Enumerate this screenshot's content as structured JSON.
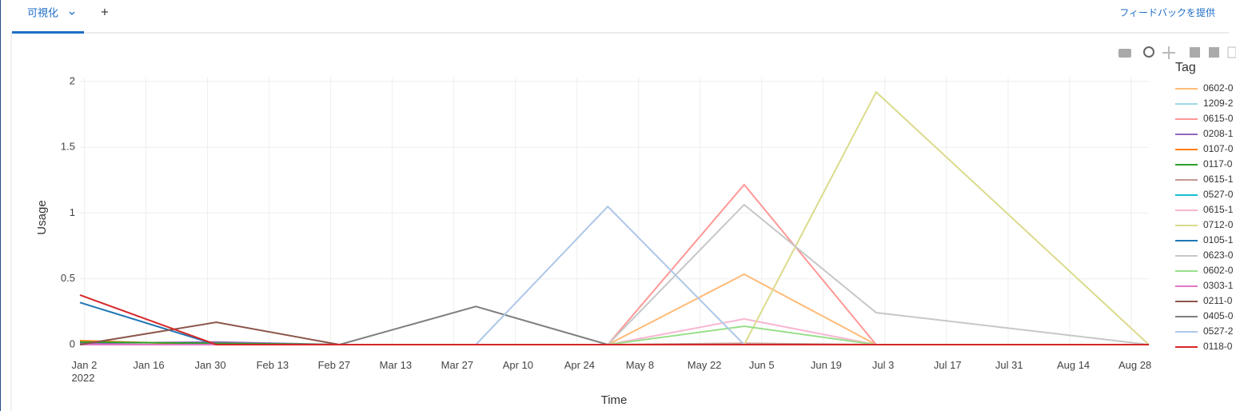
{
  "ui": {
    "tab": "可視化",
    "add": "+",
    "feedback": "フィードバックを提供"
  },
  "chart_data": {
    "type": "line",
    "xlabel": "Time",
    "ylabel": "Usage",
    "legend_title": "Tag",
    "x": [
      "2022-01-01",
      "2022-02-01",
      "2022-03-01",
      "2022-04-01",
      "2022-05-01",
      "2022-06-01",
      "2022-07-01",
      "2022-09-01"
    ],
    "xlim": [
      "2022-01-01",
      "2022-09-01"
    ],
    "xticks": [
      {
        "value": "2022-01-02",
        "label": "Jan 2\n2022"
      },
      {
        "value": "2022-01-16",
        "label": "Jan 16"
      },
      {
        "value": "2022-01-30",
        "label": "Jan 30"
      },
      {
        "value": "2022-02-13",
        "label": "Feb 13"
      },
      {
        "value": "2022-02-27",
        "label": "Feb 27"
      },
      {
        "value": "2022-03-13",
        "label": "Mar 13"
      },
      {
        "value": "2022-03-27",
        "label": "Mar 27"
      },
      {
        "value": "2022-04-10",
        "label": "Apr 10"
      },
      {
        "value": "2022-04-24",
        "label": "Apr 24"
      },
      {
        "value": "2022-05-08",
        "label": "May 8"
      },
      {
        "value": "2022-05-22",
        "label": "May 22"
      },
      {
        "value": "2022-06-05",
        "label": "Jun 5"
      },
      {
        "value": "2022-06-19",
        "label": "Jun 19"
      },
      {
        "value": "2022-07-03",
        "label": "Jul 3"
      },
      {
        "value": "2022-07-17",
        "label": "Jul 17"
      },
      {
        "value": "2022-07-31",
        "label": "Jul 31"
      },
      {
        "value": "2022-08-14",
        "label": "Aug 14"
      },
      {
        "value": "2022-08-28",
        "label": "Aug 28"
      }
    ],
    "ylim": [
      0,
      2.03
    ],
    "yticks": [
      0,
      0.5,
      1,
      1.5,
      2
    ],
    "grid": true,
    "series": [
      {
        "name": "0602-0",
        "color": "#ffbb78",
        "values": [
          null,
          null,
          null,
          null,
          0,
          0.535,
          0,
          0
        ]
      },
      {
        "name": "1209-2",
        "color": "#9edae5",
        "values": [
          0,
          0,
          0,
          0,
          0,
          0,
          0,
          0
        ]
      },
      {
        "name": "0615-0",
        "color": "#ff9896",
        "values": [
          null,
          null,
          null,
          null,
          0,
          1.216,
          0,
          0
        ]
      },
      {
        "name": "0208-1",
        "color": "#9467bd",
        "values": [
          0.01,
          0.02,
          0,
          0,
          0,
          0,
          0,
          0
        ]
      },
      {
        "name": "0107-0",
        "color": "#ff7f0e",
        "values": [
          0.03,
          0,
          0,
          0,
          0,
          0,
          0,
          0
        ]
      },
      {
        "name": "0117-0",
        "color": "#2ca02c",
        "values": [
          0.02,
          0.01,
          0,
          0,
          0,
          0,
          0,
          0
        ]
      },
      {
        "name": "0615-1",
        "color": "#c49c94",
        "values": [
          null,
          null,
          null,
          null,
          0,
          0.01,
          0,
          0
        ]
      },
      {
        "name": "0527-0",
        "color": "#17becf",
        "values": [
          null,
          null,
          null,
          null,
          0,
          0,
          0,
          0
        ]
      },
      {
        "name": "0615-1",
        "color": "#f7b6d2",
        "values": [
          null,
          null,
          null,
          null,
          0,
          0.195,
          0,
          0
        ]
      },
      {
        "name": "0712-0",
        "color": "#dbdb8d",
        "values": [
          null,
          null,
          null,
          null,
          null,
          0,
          1.92,
          0
        ]
      },
      {
        "name": "0105-1",
        "color": "#1f77b4",
        "values": [
          0.32,
          0,
          0,
          0,
          0,
          0,
          0,
          0
        ]
      },
      {
        "name": "0623-0",
        "color": "#c7c7c7",
        "values": [
          null,
          null,
          null,
          null,
          0,
          1.064,
          0.243,
          0
        ]
      },
      {
        "name": "0602-0",
        "color": "#98df8a",
        "values": [
          null,
          null,
          null,
          null,
          0,
          0.14,
          0,
          0
        ]
      },
      {
        "name": "0303-1",
        "color": "#e377c2",
        "values": [
          0,
          0,
          0,
          0,
          0,
          0,
          0,
          0
        ]
      },
      {
        "name": "0211-0",
        "color": "#8c564b",
        "values": [
          0,
          0.17,
          0,
          0,
          0,
          0,
          0,
          0
        ]
      },
      {
        "name": "0405-0",
        "color": "#7f7f7f",
        "values": [
          null,
          null,
          0,
          0.29,
          0,
          0,
          0,
          0
        ]
      },
      {
        "name": "0527-2",
        "color": "#aec7e8",
        "values": [
          null,
          null,
          null,
          0,
          1.05,
          0,
          0,
          0
        ]
      },
      {
        "name": "0118-0",
        "color": "#d62728",
        "values": [
          0.377,
          0,
          0,
          0,
          0,
          0,
          0,
          0
        ]
      }
    ]
  }
}
